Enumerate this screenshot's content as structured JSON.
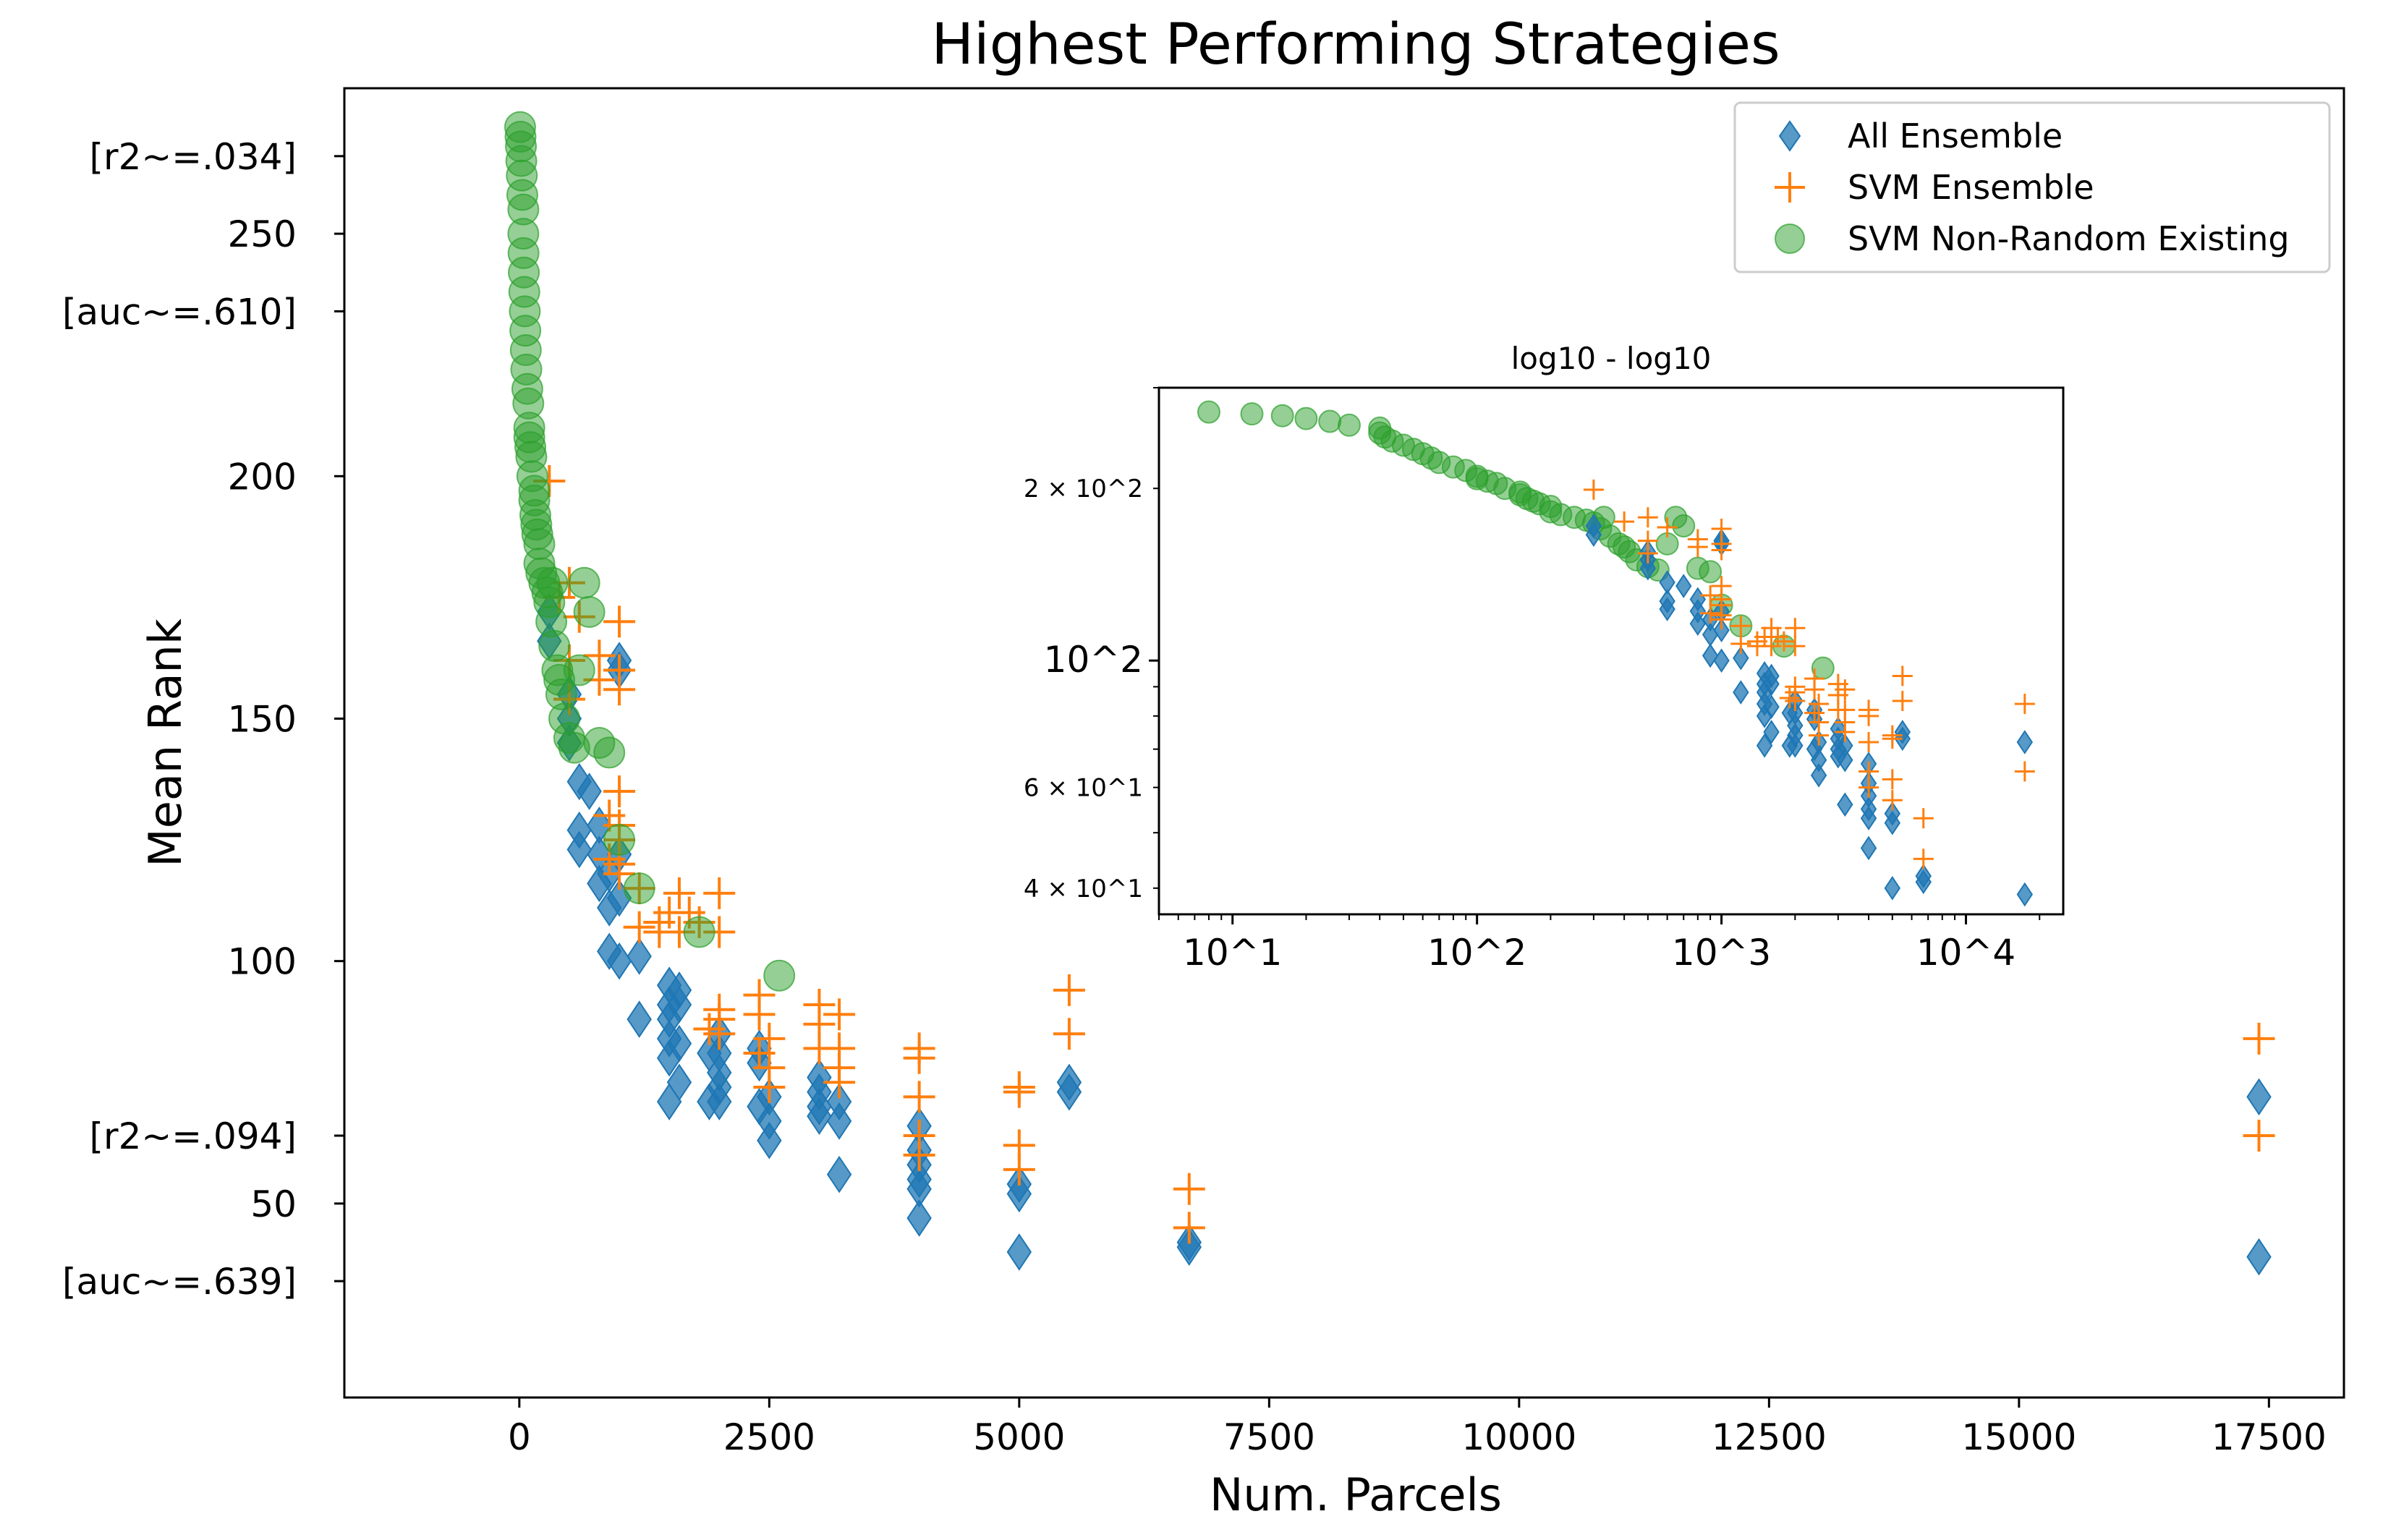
{
  "chart_data": {
    "type": "scatter",
    "title": "Highest Performing Strategies",
    "xlabel": "Num. Parcels",
    "ylabel": "Mean Rank",
    "xlim": [
      -1750,
      18250
    ],
    "ylim": [
      10,
      280
    ],
    "x_ticks": [
      0,
      2500,
      5000,
      7500,
      10000,
      12500,
      15000,
      17500
    ],
    "x_tick_labels": [
      "0",
      "2500",
      "5000",
      "7500",
      "10000",
      "12500",
      "15000",
      "17500"
    ],
    "y_ticks": [
      {
        "value": 266,
        "label": "[r2~=.034]"
      },
      {
        "value": 250,
        "label": "250"
      },
      {
        "value": 234,
        "label": "[auc~=.610]"
      },
      {
        "value": 200,
        "label": "200"
      },
      {
        "value": 150,
        "label": "150"
      },
      {
        "value": 100,
        "label": "100"
      },
      {
        "value": 64,
        "label": "[r2~=.094]"
      },
      {
        "value": 50,
        "label": "50"
      },
      {
        "value": 34,
        "label": "[auc~=.639]"
      }
    ],
    "legend": {
      "position": "top-right",
      "entries": [
        "All Ensemble",
        "SVM Ensemble",
        "SVM Non-Random Existing"
      ]
    },
    "colors": {
      "all_ensemble": "#1f77b4",
      "svm_ensemble": "#ff7f0e",
      "svm_nonrandom": "#2ca02c"
    },
    "series": [
      {
        "name": "All Ensemble",
        "marker": "diamond",
        "x": [
          300,
          300,
          500,
          500,
          500,
          600,
          600,
          600,
          700,
          800,
          800,
          800,
          900,
          900,
          900,
          1000,
          1000,
          1000,
          1000,
          1000,
          1200,
          1200,
          1500,
          1500,
          1500,
          1500,
          1500,
          1500,
          1600,
          1600,
          1600,
          1600,
          1900,
          1900,
          2000,
          2000,
          2000,
          2000,
          2000,
          2400,
          2400,
          2400,
          2500,
          2500,
          2500,
          3000,
          3000,
          3000,
          3000,
          3200,
          3200,
          3200,
          4000,
          4000,
          4000,
          4000,
          4000,
          4000,
          5000,
          5000,
          5000,
          5500,
          5500,
          6700,
          6700,
          17400,
          17400
        ],
        "y": [
          172,
          166,
          155,
          150,
          145,
          137,
          127,
          123,
          135,
          128,
          122,
          116,
          118,
          111,
          102,
          162,
          160,
          122,
          113,
          100,
          101,
          88,
          95,
          91,
          88,
          84,
          80,
          71,
          94,
          91,
          83,
          75,
          81,
          71,
          85,
          81,
          77,
          74,
          71,
          82,
          79,
          70,
          72,
          67,
          63,
          76,
          73,
          70,
          68,
          71,
          67,
          56,
          66,
          61,
          58,
          55,
          53,
          47,
          54,
          52,
          40,
          75,
          73,
          42,
          41,
          72,
          39
        ]
      },
      {
        "name": "SVM Ensemble",
        "marker": "plus",
        "x": [
          300,
          400,
          500,
          500,
          500,
          600,
          800,
          800,
          900,
          900,
          1000,
          1000,
          1000,
          1000,
          1000,
          1000,
          1000,
          1000,
          1200,
          1200,
          1400,
          1400,
          1500,
          1600,
          1600,
          1700,
          1800,
          1900,
          2000,
          2000,
          2000,
          2000,
          2000,
          2400,
          2400,
          2400,
          2500,
          2500,
          2500,
          3000,
          3000,
          3000,
          3200,
          3200,
          3200,
          3200,
          4000,
          4000,
          4000,
          4000,
          4000,
          5000,
          5000,
          5000,
          5000,
          5500,
          5500,
          6700,
          6700,
          17400,
          17400
        ],
        "y": [
          199,
          175,
          178,
          162,
          154,
          171,
          163,
          158,
          130,
          121,
          170,
          160,
          156,
          135,
          128,
          125,
          120,
          118,
          115,
          107,
          108,
          106,
          110,
          114,
          106,
          110,
          108,
          86,
          114,
          106,
          90,
          88,
          85,
          93,
          89,
          81,
          84,
          78,
          74,
          91,
          87,
          82,
          89,
          82,
          78,
          75,
          82,
          80,
          72,
          64,
          60,
          74,
          73,
          62,
          57,
          94,
          85,
          53,
          45,
          84,
          64
        ]
      },
      {
        "name": "SVM Non-Random Existing",
        "marker": "circle",
        "x": [
          8,
          12,
          16,
          20,
          25,
          30,
          40,
          40,
          42,
          45,
          50,
          55,
          60,
          65,
          70,
          80,
          90,
          100,
          100,
          110,
          120,
          130,
          150,
          150,
          160,
          170,
          180,
          200,
          200,
          220,
          250,
          280,
          300,
          320,
          330,
          350,
          380,
          400,
          420,
          450,
          500,
          550,
          600,
          650,
          700,
          800,
          900,
          1000,
          1200,
          1800,
          2600
        ],
        "y": [
          272,
          270,
          268,
          265,
          262,
          258,
          255,
          250,
          246,
          242,
          238,
          234,
          230,
          226,
          222,
          218,
          215,
          210,
          208,
          206,
          204,
          200,
          197,
          195,
          192,
          190,
          188,
          186,
          182,
          180,
          178,
          176,
          174,
          170,
          178,
          165,
          160,
          158,
          155,
          150,
          146,
          144,
          160,
          178,
          172,
          145,
          143,
          125,
          115,
          106,
          97
        ]
      }
    ],
    "inset": {
      "title": "log10 - log10",
      "xscale": "log10",
      "yscale": "log10",
      "xlim": [
        5,
        25000
      ],
      "ylim": [
        36,
        300
      ],
      "x_tick_labels": [
        "10^1",
        "10^2",
        "10^3",
        "10^4"
      ],
      "y_tick_labels": [
        "4 × 10^1",
        "6 × 10^1",
        "10^2",
        "2 × 10^2"
      ]
    }
  }
}
